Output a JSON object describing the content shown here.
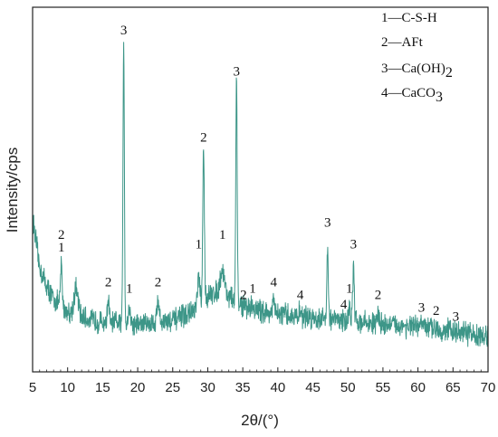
{
  "chart_data": {
    "type": "line",
    "xlabel": "2θ/(°)",
    "ylabel": "Intensity/cps",
    "xlim": [
      5,
      70
    ],
    "x_ticks": [
      5,
      10,
      15,
      20,
      25,
      30,
      35,
      40,
      45,
      50,
      55,
      60,
      65,
      70
    ],
    "y_scale": "relative (no tick values)",
    "line_color": "#3d9688",
    "legend": {
      "placement": "top-right",
      "entries": [
        {
          "key": "1",
          "sep": "—",
          "name": "C-S-H",
          "sub": ""
        },
        {
          "key": "2",
          "sep": "—",
          "name": "AFt",
          "sub": ""
        },
        {
          "key": "3",
          "sep": "—",
          "name": "Ca(OH)",
          "sub": "2"
        },
        {
          "key": "4",
          "sep": "—",
          "name": "CaCO",
          "sub": "3"
        }
      ]
    },
    "baseline": [
      [
        5,
        0.44
      ],
      [
        6,
        0.28
      ],
      [
        7,
        0.22
      ],
      [
        8,
        0.18
      ],
      [
        10,
        0.14
      ],
      [
        12,
        0.12
      ],
      [
        15,
        0.105
      ],
      [
        20,
        0.1
      ],
      [
        25,
        0.11
      ],
      [
        28,
        0.14
      ],
      [
        30,
        0.19
      ],
      [
        32,
        0.21
      ],
      [
        34,
        0.17
      ],
      [
        36,
        0.15
      ],
      [
        40,
        0.13
      ],
      [
        45,
        0.12
      ],
      [
        50,
        0.11
      ],
      [
        55,
        0.1
      ],
      [
        60,
        0.09
      ],
      [
        65,
        0.075
      ],
      [
        70,
        0.06
      ]
    ],
    "peaks": [
      {
        "x": 9.1,
        "intensity": 0.29,
        "width": 0.12
      },
      {
        "x": 11.2,
        "intensity": 0.21,
        "width": 0.3
      },
      {
        "x": 15.8,
        "intensity": 0.18,
        "width": 0.12
      },
      {
        "x": 18.0,
        "intensity": 1.0,
        "width": 0.1
      },
      {
        "x": 18.8,
        "intensity": 0.15,
        "width": 0.15
      },
      {
        "x": 22.9,
        "intensity": 0.18,
        "width": 0.15
      },
      {
        "x": 29.4,
        "intensity": 0.66,
        "width": 0.11
      },
      {
        "x": 28.7,
        "intensity": 0.25,
        "width": 0.15
      },
      {
        "x": 32.1,
        "intensity": 0.27,
        "width": 0.3
      },
      {
        "x": 34.1,
        "intensity": 0.87,
        "width": 0.1
      },
      {
        "x": 36.4,
        "intensity": 0.16,
        "width": 0.15
      },
      {
        "x": 39.4,
        "intensity": 0.17,
        "width": 0.15
      },
      {
        "x": 43.2,
        "intensity": 0.14,
        "width": 0.15
      },
      {
        "x": 47.1,
        "intensity": 0.34,
        "width": 0.11
      },
      {
        "x": 50.2,
        "intensity": 0.15,
        "width": 0.15
      },
      {
        "x": 50.8,
        "intensity": 0.28,
        "width": 0.11
      },
      {
        "x": 54.3,
        "intensity": 0.13,
        "width": 0.15
      },
      {
        "x": 60.5,
        "intensity": 0.11,
        "width": 0.15
      },
      {
        "x": 62.6,
        "intensity": 0.1,
        "width": 0.15
      },
      {
        "x": 64.5,
        "intensity": 0.09,
        "width": 0.15
      }
    ],
    "annotations": [
      {
        "text": "3",
        "x": 18.0,
        "y": 1.02
      },
      {
        "text": "3",
        "x": 34.1,
        "y": 0.89
      },
      {
        "text": "2",
        "x": 29.4,
        "y": 0.68
      },
      {
        "text": "2",
        "x": 9.1,
        "y": 0.37
      },
      {
        "text": "1",
        "x": 9.1,
        "y": 0.33
      },
      {
        "text": "1",
        "x": 32.1,
        "y": 0.37
      },
      {
        "text": "1",
        "x": 28.7,
        "y": 0.34
      },
      {
        "text": "3",
        "x": 47.1,
        "y": 0.41
      },
      {
        "text": "3",
        "x": 50.8,
        "y": 0.34
      },
      {
        "text": "2",
        "x": 15.8,
        "y": 0.22
      },
      {
        "text": "1",
        "x": 18.8,
        "y": 0.2
      },
      {
        "text": "2",
        "x": 22.9,
        "y": 0.22
      },
      {
        "text": "1",
        "x": 36.4,
        "y": 0.2
      },
      {
        "text": "2",
        "x": 35.1,
        "y": 0.18
      },
      {
        "text": "4",
        "x": 39.4,
        "y": 0.22
      },
      {
        "text": "4",
        "x": 43.2,
        "y": 0.18
      },
      {
        "text": "1",
        "x": 50.2,
        "y": 0.2
      },
      {
        "text": "4",
        "x": 49.4,
        "y": 0.15
      },
      {
        "text": "2",
        "x": 54.3,
        "y": 0.18
      },
      {
        "text": "3",
        "x": 60.5,
        "y": 0.14
      },
      {
        "text": "2",
        "x": 62.6,
        "y": 0.13
      },
      {
        "text": "3",
        "x": 65.4,
        "y": 0.11
      }
    ]
  }
}
